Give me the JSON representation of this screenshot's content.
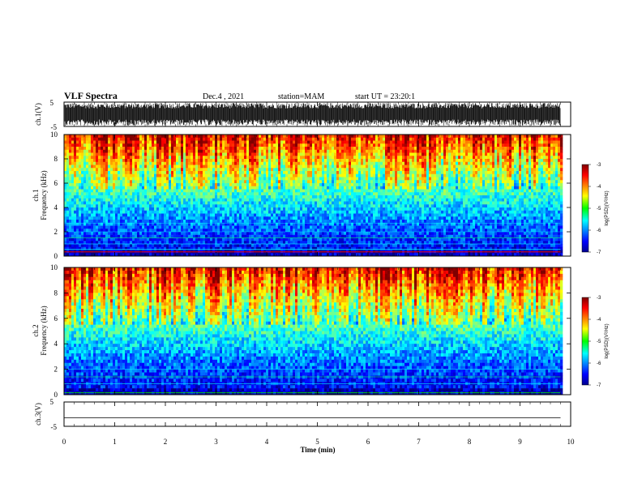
{
  "header": {
    "title": "VLF Spectra",
    "date": "Dec.4 , 2021",
    "station": "station=MAM",
    "start": "start UT = 23:20:1"
  },
  "chart_data": [
    {
      "type": "line",
      "name": "ch1-waveform",
      "ylabel": "ch.1(V)",
      "yticks": [
        "5",
        "-5"
      ],
      "ylim": [
        -5,
        5
      ],
      "description_values": "dense oscillation between approx -5 and +5 V across 0-9.8 min"
    },
    {
      "type": "heatmap",
      "name": "ch1-spectrogram",
      "ylabel": "ch.1",
      "ylabel2": "Frequency (kHz)",
      "yticks": [
        "0",
        "2",
        "4",
        "6",
        "8",
        "10"
      ],
      "ylim": [
        0,
        10
      ],
      "colorbar": {
        "label": "log(PSD)(V²/Hz)",
        "ticks": [
          "-3",
          "-4",
          "-5",
          "-6",
          "-7"
        ],
        "range": [
          -7,
          -3
        ]
      }
    },
    {
      "type": "heatmap",
      "name": "ch2-spectrogram",
      "ylabel": "ch.2",
      "ylabel2": "Frequency (kHz)",
      "yticks": [
        "0",
        "2",
        "4",
        "6",
        "8",
        "10"
      ],
      "ylim": [
        0,
        10
      ],
      "colorbar": {
        "label": "log(PSD)(V²/Hz)",
        "ticks": [
          "-3",
          "-4",
          "-5",
          "-6",
          "-7"
        ],
        "range": [
          -7,
          -3
        ]
      }
    },
    {
      "type": "line",
      "name": "ch3-waveform",
      "ylabel": "ch.3(V)",
      "yticks": [
        "5",
        "-5"
      ],
      "ylim": [
        -5,
        5
      ],
      "x": [
        0,
        9.8
      ],
      "y": [
        -1.5,
        -1.5
      ]
    }
  ],
  "xaxis": {
    "label": "Time (min)",
    "ticks": [
      "0",
      "1",
      "2",
      "3",
      "4",
      "5",
      "6",
      "7",
      "8",
      "9",
      "10"
    ],
    "range": [
      0,
      10
    ]
  },
  "colors": {
    "jet": [
      "#00008f",
      "#0000ff",
      "#00ffff",
      "#00ff00",
      "#ffff00",
      "#ff0000",
      "#800000"
    ]
  }
}
